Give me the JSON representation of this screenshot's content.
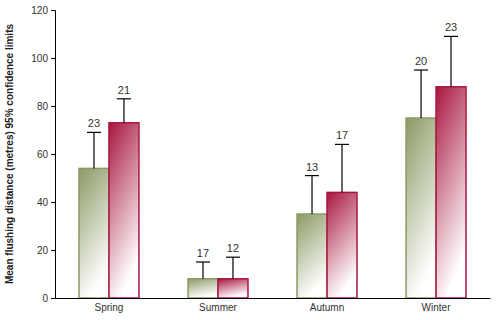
{
  "chart_data": {
    "type": "bar",
    "y_label": "Mean flushing distance (metres) 95% confidence limits",
    "categories": [
      "Spring",
      "Summer",
      "Autumn",
      "Winter"
    ],
    "series": [
      {
        "color": "#8a9a64",
        "values": [
          54,
          8,
          35,
          75
        ],
        "errors": [
          15,
          7,
          16,
          20
        ],
        "n": [
          23,
          17,
          13,
          20
        ]
      },
      {
        "color": "#a8163f",
        "values": [
          73,
          8,
          44,
          88
        ],
        "errors": [
          10,
          9,
          20,
          21
        ],
        "n": [
          21,
          12,
          17,
          23
        ]
      }
    ],
    "ylim": [
      0,
      120
    ],
    "yticks": [
      0,
      20,
      40,
      60,
      80,
      100,
      120
    ],
    "grid": false
  }
}
